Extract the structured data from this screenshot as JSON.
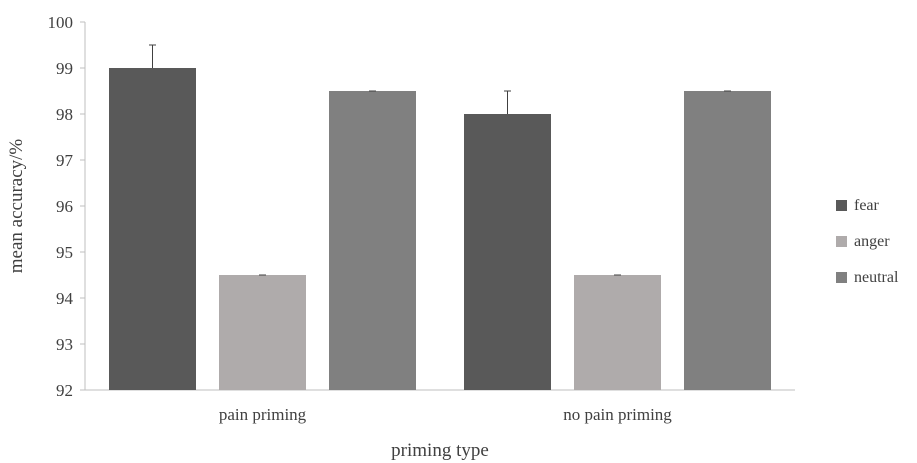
{
  "chart_data": {
    "type": "bar",
    "categories": [
      "pain priming",
      "no pain priming"
    ],
    "series": [
      {
        "name": "fear",
        "values": [
          99.0,
          98.0
        ],
        "errors": [
          0.5,
          0.5
        ],
        "color": "#595959"
      },
      {
        "name": "anger",
        "values": [
          94.5,
          94.5
        ],
        "errors": [
          0.0,
          0.0
        ],
        "color": "#afabab"
      },
      {
        "name": "neutral",
        "values": [
          98.5,
          98.5
        ],
        "errors": [
          0.0,
          0.0
        ],
        "color": "#808080"
      }
    ],
    "title": "",
    "xlabel": "priming type",
    "ylabel": "mean accuracy/%",
    "ylim": [
      92,
      100
    ],
    "yticks": [
      92,
      93,
      94,
      95,
      96,
      97,
      98,
      99,
      100
    ],
    "grid": false,
    "legend_position": "right"
  }
}
